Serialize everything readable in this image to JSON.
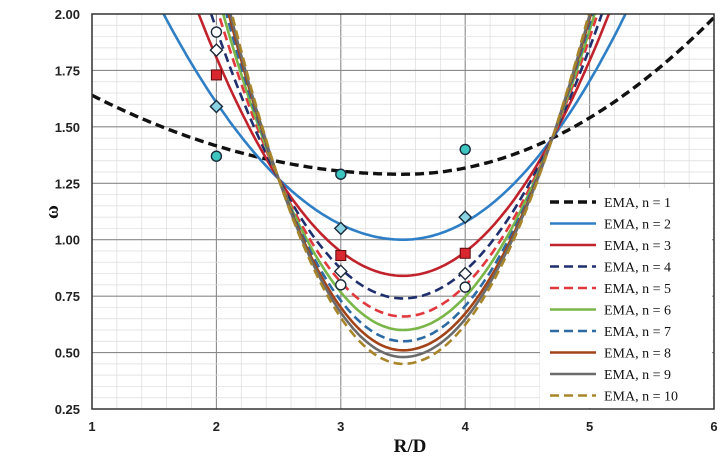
{
  "chart_data": {
    "type": "line",
    "title": "",
    "xlabel": "R/D",
    "ylabel": "ω",
    "xlim": [
      1,
      6
    ],
    "ylim": [
      0.25,
      2.0
    ],
    "x_ticks": [
      "1",
      "2",
      "3",
      "4",
      "5",
      "6"
    ],
    "y_ticks": [
      "0.25",
      "0.50",
      "0.75",
      "1.00",
      "1.25",
      "1.50",
      "1.75",
      "2.00"
    ],
    "grid": true,
    "legend_position": "bottom-right",
    "series": [
      {
        "name": "EMA, n = 1",
        "color": "#111111",
        "dash": "dashed",
        "min": 1.29,
        "y_at_1": 1.64
      },
      {
        "name": "EMA, n = 2",
        "color": "#2f7fc6",
        "dash": "solid",
        "min": 1.0
      },
      {
        "name": "EMA, n = 3",
        "color": "#c0232b",
        "dash": "solid",
        "min": 0.84
      },
      {
        "name": "EMA, n = 4",
        "color": "#1f2f6e",
        "dash": "dashed",
        "min": 0.74
      },
      {
        "name": "EMA, n = 5",
        "color": "#e0383d",
        "dash": "dashed",
        "min": 0.66
      },
      {
        "name": "EMA, n = 6",
        "color": "#7ab648",
        "dash": "solid",
        "min": 0.6
      },
      {
        "name": "EMA, n = 7",
        "color": "#2d6aa3",
        "dash": "dashed",
        "min": 0.55
      },
      {
        "name": "EMA, n = 8",
        "color": "#a34318",
        "dash": "solid",
        "min": 0.51
      },
      {
        "name": "EMA, n = 9",
        "color": "#6b6b6b",
        "dash": "solid",
        "min": 0.48
      },
      {
        "name": "EMA, n = 10",
        "color": "#a9852a",
        "dash": "dashed",
        "min": 0.45
      }
    ],
    "markers": [
      {
        "series": "EMA, n = 1",
        "shape": "circle",
        "color": "#3cc6bf",
        "points": [
          [
            2,
            1.37
          ],
          [
            3,
            1.29
          ],
          [
            4,
            1.4
          ]
        ]
      },
      {
        "series": "EMA, n = 2",
        "shape": "diamond",
        "color": "#8ad3e3",
        "points": [
          [
            2,
            1.59
          ],
          [
            3,
            1.05
          ],
          [
            4,
            1.1
          ]
        ]
      },
      {
        "series": "EMA, n = 3",
        "shape": "square",
        "color": "#d8272f",
        "points": [
          [
            2,
            1.73
          ],
          [
            3,
            0.93
          ],
          [
            4,
            0.94
          ]
        ]
      },
      {
        "series": "EMA, n = 4",
        "shape": "diamond",
        "color": "#ffffff",
        "points": [
          [
            2,
            1.84
          ],
          [
            3,
            0.86
          ],
          [
            4,
            0.85
          ]
        ]
      },
      {
        "series": "EMA, n = 5",
        "shape": "circle",
        "color": "#ffffff",
        "points": [
          [
            2,
            1.92
          ],
          [
            3,
            0.8
          ],
          [
            4,
            0.79
          ]
        ]
      }
    ]
  }
}
